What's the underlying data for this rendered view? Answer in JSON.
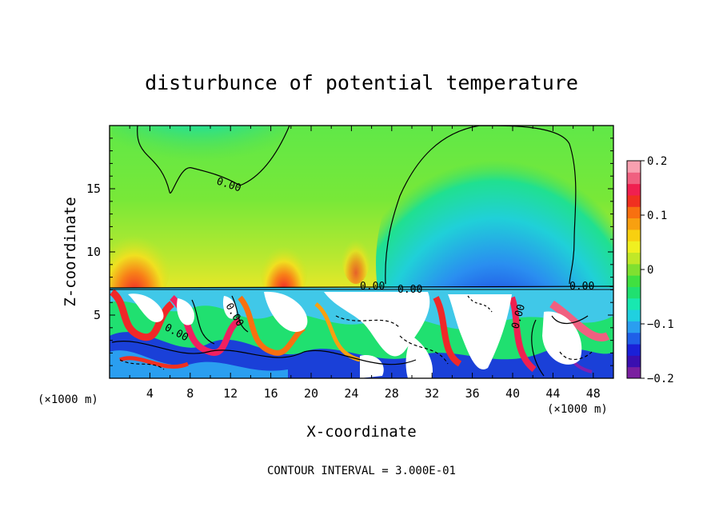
{
  "chart_data": {
    "type": "heatmap",
    "title": "disturbunce of potential temperature",
    "xlabel": "X-coordinate",
    "ylabel": "Z-coordinate",
    "x_unit_label_left": "(×1000 m)",
    "x_unit_label_right": "(×1000 m)",
    "footer": "CONTOUR INTERVAL = 3.000E-01",
    "xlim": [
      0,
      50
    ],
    "ylim": [
      0,
      20
    ],
    "x_ticks": [
      "4",
      "8",
      "12",
      "16",
      "20",
      "24",
      "28",
      "32",
      "36",
      "40",
      "44",
      "48"
    ],
    "y_ticks": [
      "5",
      "10",
      "15"
    ],
    "colorbar": {
      "range": [
        -0.2,
        0.2
      ],
      "tick_labels": [
        "0.2",
        "0.1",
        "0",
        "−0.1",
        "−0.2"
      ],
      "tick_values": [
        0.2,
        0.1,
        0,
        -0.1,
        -0.2
      ],
      "colors": [
        "#7a1fa0",
        "#3a0fb0",
        "#1a20d8",
        "#1f5fe8",
        "#2a9ef0",
        "#20d0e0",
        "#18e8b0",
        "#20e070",
        "#40e040",
        "#80e030",
        "#c0e828",
        "#f0f020",
        "#f8d010",
        "#f8a010",
        "#f87010",
        "#f03020",
        "#f02050",
        "#f06080",
        "#f8a0b0"
      ]
    },
    "contour_labels": [
      "0.00",
      "0.00",
      "0.00",
      "0.00",
      "0.00",
      "0.00",
      "0.00"
    ]
  }
}
